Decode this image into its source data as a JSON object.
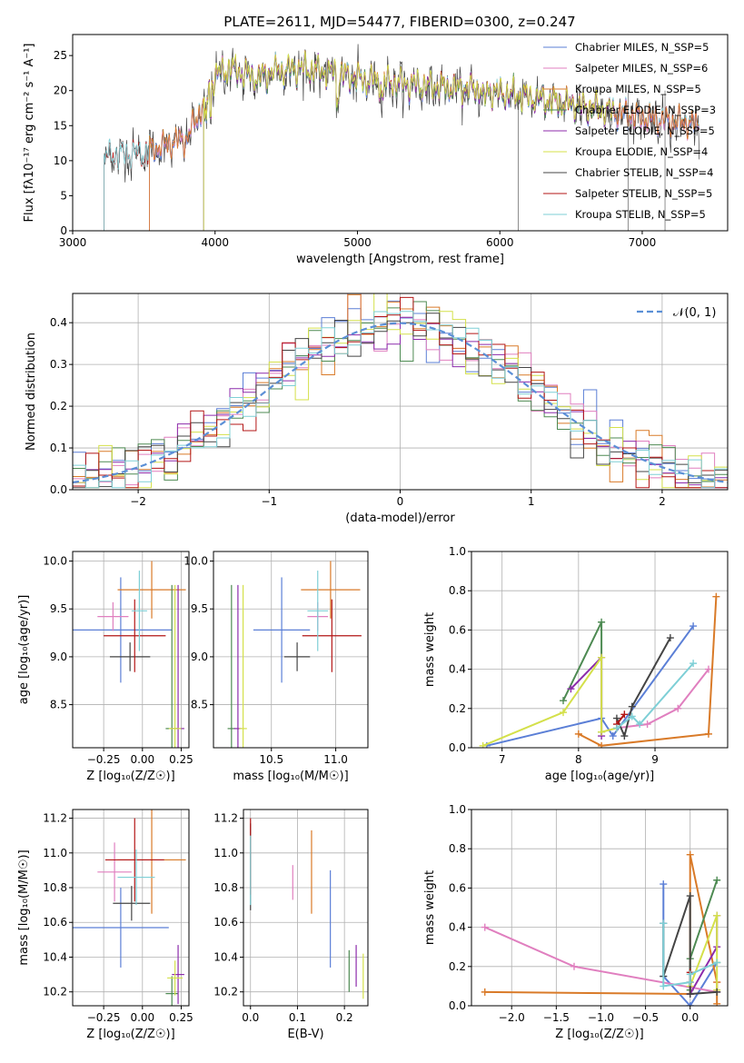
{
  "figure_title": "PLATE=2611, MJD=54477, FIBERID=0300, z=0.247",
  "colors": [
    "#5b7fd6",
    "#e07fbf",
    "#d97a28",
    "#4d8a52",
    "#8c2bab",
    "#d4e04a",
    "#444444",
    "#b31616",
    "#7ecfd6"
  ],
  "chart_data": [
    {
      "id": "spectrum",
      "type": "line",
      "xlabel": "wavelength [Angstrom, rest frame]",
      "ylabel": "Flux [fλ10⁻¹⁷ erg cm⁻² s⁻¹ A⁻¹]",
      "xlim": [
        3000,
        7600
      ],
      "ylim": [
        0,
        28
      ],
      "xticks": [
        3000,
        4000,
        5000,
        6000,
        7000
      ],
      "yticks": [
        0,
        5,
        10,
        15,
        20,
        25
      ],
      "grid": false,
      "legend_position": "right",
      "series": [
        {
          "name": "Chabrier MILES, N_SSP=5",
          "start": 3540,
          "end": 7400
        },
        {
          "name": "Salpeter MILES, N_SSP=6",
          "start": 3540,
          "end": 7400
        },
        {
          "name": "Kroupa MILES, N_SSP=5",
          "start": 3540,
          "end": 7400
        },
        {
          "name": "Chabrier ELODIE, N_SSP=3",
          "start": 3920,
          "end": 6800
        },
        {
          "name": "Salpeter ELODIE, N_SSP=5",
          "start": 3920,
          "end": 6800
        },
        {
          "name": "Kroupa ELODIE, N_SSP=4",
          "start": 3920,
          "end": 6800
        },
        {
          "name": "Chabrier STELIB, N_SSP=4",
          "start": 3220,
          "end": 7400
        },
        {
          "name": "Salpeter STELIB, N_SSP=5",
          "start": 3220,
          "end": 7400
        },
        {
          "name": "Kroupa STELIB, N_SSP=5",
          "start": 3220,
          "end": 7400
        }
      ],
      "continuum": {
        "x": [
          3220,
          3500,
          3800,
          3900,
          4000,
          4100,
          4300,
          4400,
          4600,
          4800,
          5000,
          5200,
          5500,
          5800,
          6000,
          6300,
          6600,
          7000,
          7400
        ],
        "y": [
          10.5,
          11,
          13,
          17,
          22,
          23,
          21.5,
          22.5,
          23,
          22.5,
          21.5,
          21,
          20.5,
          20,
          19.5,
          18.5,
          17.5,
          16,
          15
        ]
      }
    },
    {
      "id": "residuals",
      "type": "histogram",
      "xlabel": "(data-model)/error",
      "ylabel": "Normed distribution",
      "xlim": [
        -2.5,
        2.5
      ],
      "ylim": [
        0,
        0.47
      ],
      "xticks": [
        -2,
        -1,
        0,
        1,
        2
      ],
      "yticks": [
        0.0,
        0.1,
        0.2,
        0.3,
        0.4
      ],
      "grid": true,
      "bin_width": 0.1,
      "legend_position": "top-right",
      "legend": [
        "𝒩(0, 1)"
      ]
    },
    {
      "id": "age-vs-z",
      "type": "scatter",
      "xlabel": "Z [log₁₀(Z/Z☉)]",
      "ylabel": "age  [log₁₀(age/yr)]",
      "xlim": [
        -0.45,
        0.3
      ],
      "ylim": [
        8.05,
        10.1
      ],
      "xticks": [
        -0.25,
        0.0,
        0.25
      ],
      "yticks": [
        8.5,
        9.0,
        9.5,
        10.0
      ],
      "grid": true,
      "points": [
        {
          "x": -0.14,
          "y": 9.28,
          "xerr": 0.33,
          "yerr": 0.55
        },
        {
          "x": -0.19,
          "y": 9.42,
          "xerr": 0.1,
          "yerr": 0.15
        },
        {
          "x": 0.06,
          "y": 9.7,
          "xerr": 0.22,
          "yerr": 0.3
        },
        {
          "x": 0.19,
          "y": 8.25,
          "xerr": 0.04,
          "yerr": 1.5
        },
        {
          "x": 0.23,
          "y": 8.25,
          "xerr": 0.04,
          "yerr": 1.5
        },
        {
          "x": 0.21,
          "y": 8.25,
          "xerr": 0.04,
          "yerr": 1.5
        },
        {
          "x": -0.08,
          "y": 9.0,
          "xerr": 0.13,
          "yerr": 0.15
        },
        {
          "x": -0.05,
          "y": 9.22,
          "xerr": 0.2,
          "yerr": 0.38
        },
        {
          "x": -0.02,
          "y": 9.48,
          "xerr": 0.05,
          "yerr": 0.42
        }
      ]
    },
    {
      "id": "age-vs-mass",
      "type": "scatter",
      "xlabel": "mass [log₁₀(M/M☉)]",
      "ylabel": "",
      "xlim": [
        10.05,
        11.25
      ],
      "ylim": [
        8.05,
        10.1
      ],
      "xticks": [
        10.5,
        11.0
      ],
      "yticks": [
        8.5,
        9.0,
        9.5,
        10.0
      ],
      "grid": true,
      "points": [
        {
          "x": 10.58,
          "y": 9.28,
          "xerr": 0.22,
          "yerr": 0.55
        },
        {
          "x": 10.86,
          "y": 9.42,
          "xerr": 0.08,
          "yerr": 0.15
        },
        {
          "x": 10.96,
          "y": 9.7,
          "xerr": 0.23,
          "yerr": 0.3
        },
        {
          "x": 10.19,
          "y": 8.25,
          "xerr": 0.03,
          "yerr": 1.5
        },
        {
          "x": 10.24,
          "y": 8.25,
          "xerr": 0.03,
          "yerr": 1.5
        },
        {
          "x": 10.28,
          "y": 8.25,
          "xerr": 0.03,
          "yerr": 1.5
        },
        {
          "x": 10.7,
          "y": 9.0,
          "xerr": 0.1,
          "yerr": 0.15
        },
        {
          "x": 10.97,
          "y": 9.22,
          "xerr": 0.23,
          "yerr": 0.38
        },
        {
          "x": 10.86,
          "y": 9.48,
          "xerr": 0.08,
          "yerr": 0.42
        }
      ]
    },
    {
      "id": "mass-weight-vs-age",
      "type": "line",
      "xlabel": "age  [log₁₀(age/yr)]",
      "ylabel": "mass weight",
      "xlim": [
        6.6,
        9.95
      ],
      "ylim": [
        0,
        1
      ],
      "xticks": [
        7,
        8,
        9
      ],
      "yticks": [
        0.0,
        0.2,
        0.4,
        0.6,
        0.8,
        1.0
      ],
      "grid": true,
      "series": [
        {
          "x": [
            6.8,
            8.3,
            8.45,
            9.5
          ],
          "y": [
            0.01,
            0.15,
            0.06,
            0.62
          ]
        },
        {
          "x": [
            8.5,
            8.9,
            9.3,
            9.7
          ],
          "y": [
            0.1,
            0.12,
            0.2,
            0.4
          ]
        },
        {
          "x": [
            8.0,
            8.3,
            9.7,
            9.8
          ],
          "y": [
            0.07,
            0.01,
            0.07,
            0.77
          ]
        },
        {
          "x": [
            7.8,
            8.3,
            8.3
          ],
          "y": [
            0.24,
            0.64,
            0.08
          ]
        },
        {
          "x": [
            7.9,
            8.3,
            8.3
          ],
          "y": [
            0.3,
            0.46,
            0.06
          ]
        },
        {
          "x": [
            6.75,
            7.8,
            8.3,
            8.3,
            8.5
          ],
          "y": [
            0.01,
            0.18,
            0.46,
            0.08,
            0.1
          ]
        },
        {
          "x": [
            8.5,
            8.6,
            8.7,
            9.2
          ],
          "y": [
            0.15,
            0.06,
            0.21,
            0.56
          ]
        },
        {
          "x": [
            8.5,
            8.6
          ],
          "y": [
            0.12,
            0.17
          ]
        },
        {
          "x": [
            8.5,
            8.7,
            8.8,
            9.5
          ],
          "y": [
            0.1,
            0.16,
            0.12,
            0.43
          ]
        }
      ]
    },
    {
      "id": "mass-vs-z",
      "type": "scatter",
      "xlabel": "Z [log₁₀(Z/Z☉)]",
      "ylabel": "mass [log₁₀(M/M☉)]",
      "xlim": [
        -0.45,
        0.3
      ],
      "ylim": [
        10.12,
        11.25
      ],
      "xticks": [
        -0.25,
        0.0,
        0.25
      ],
      "yticks": [
        10.2,
        10.4,
        10.6,
        10.8,
        11.0,
        11.2
      ],
      "grid": true,
      "points": [
        {
          "x": -0.14,
          "y": 10.57,
          "xerr": 0.31,
          "yerr": 0.23
        },
        {
          "x": -0.18,
          "y": 10.89,
          "xerr": 0.11,
          "yerr": 0.17
        },
        {
          "x": 0.06,
          "y": 10.96,
          "xerr": 0.22,
          "yerr": 0.31
        },
        {
          "x": 0.19,
          "y": 10.19,
          "xerr": 0.04,
          "yerr": 0.1
        },
        {
          "x": 0.23,
          "y": 10.3,
          "xerr": 0.04,
          "yerr": 0.17
        },
        {
          "x": 0.21,
          "y": 10.28,
          "xerr": 0.05,
          "yerr": 0.1
        },
        {
          "x": -0.07,
          "y": 10.71,
          "xerr": 0.12,
          "yerr": 0.1
        },
        {
          "x": -0.05,
          "y": 10.96,
          "xerr": 0.19,
          "yerr": 0.24
        },
        {
          "x": -0.04,
          "y": 10.86,
          "xerr": 0.12,
          "yerr": 0.16
        }
      ]
    },
    {
      "id": "mass-vs-ebv",
      "type": "scatter",
      "xlabel": "E(B-V)",
      "ylabel": "",
      "xlim": [
        -0.015,
        0.25
      ],
      "ylim": [
        10.12,
        11.25
      ],
      "xticks": [
        0.0,
        0.1,
        0.2
      ],
      "yticks": [
        10.2,
        10.4,
        10.6,
        10.8,
        11.0,
        11.2
      ],
      "grid": true,
      "points": [
        {
          "x": 0.17,
          "y": 10.62,
          "yerr": 0.28
        },
        {
          "x": 0.09,
          "y": 10.83,
          "yerr": 0.1
        },
        {
          "x": 0.13,
          "y": 10.89,
          "yerr": 0.24
        },
        {
          "x": 0.21,
          "y": 10.32,
          "yerr": 0.12
        },
        {
          "x": 0.225,
          "y": 10.35,
          "yerr": 0.12
        },
        {
          "x": 0.24,
          "y": 10.29,
          "yerr": 0.13
        },
        {
          "x": 0.0,
          "y": 10.92,
          "yerr": 0.25
        },
        {
          "x": 0.0,
          "y": 10.98,
          "yerr": 0.22
        },
        {
          "x": 0.0,
          "y": 10.9,
          "yerr": 0.2
        }
      ]
    },
    {
      "id": "mass-weight-vs-z",
      "type": "line",
      "xlabel": "Z [log₁₀(Z/Z☉)]",
      "ylabel": "mass weight",
      "xlim": [
        -2.45,
        0.42
      ],
      "ylim": [
        0,
        1
      ],
      "xticks": [
        -2.0,
        -1.5,
        -1.0,
        -0.5,
        0.0
      ],
      "yticks": [
        0.0,
        0.2,
        0.4,
        0.6,
        0.8,
        1.0
      ],
      "grid": true,
      "series": [
        {
          "x": [
            -0.3,
            -0.3,
            0.0,
            0.3
          ],
          "y": [
            0.62,
            0.15,
            0.0,
            0.22
          ]
        },
        {
          "x": [
            -2.3,
            -1.3,
            0.3,
            0.3
          ],
          "y": [
            0.4,
            0.2,
            0.07,
            0.12
          ]
        },
        {
          "x": [
            -2.3,
            0.0,
            0.0,
            0.3,
            0.3
          ],
          "y": [
            0.07,
            0.06,
            0.77,
            0.12,
            0.01
          ]
        },
        {
          "x": [
            0.0,
            0.0,
            0.3
          ],
          "y": [
            0.08,
            0.24,
            0.64
          ]
        },
        {
          "x": [
            0.0,
            0.3,
            0.3
          ],
          "y": [
            0.06,
            0.3,
            0.46
          ]
        },
        {
          "x": [
            0.0,
            0.3,
            0.3,
            0.3
          ],
          "y": [
            0.1,
            0.46,
            0.22,
            0.08
          ]
        },
        {
          "x": [
            -0.3,
            -0.3,
            0.0,
            0.0,
            0.3
          ],
          "y": [
            0.42,
            0.15,
            0.56,
            0.06,
            0.07
          ]
        },
        {
          "x": [
            0.0,
            0.0
          ],
          "y": [
            0.12,
            0.17
          ]
        },
        {
          "x": [
            -0.3,
            -0.3,
            0.0,
            0.0,
            0.3
          ],
          "y": [
            0.42,
            0.1,
            0.12,
            0.16,
            0.22
          ]
        }
      ]
    }
  ]
}
